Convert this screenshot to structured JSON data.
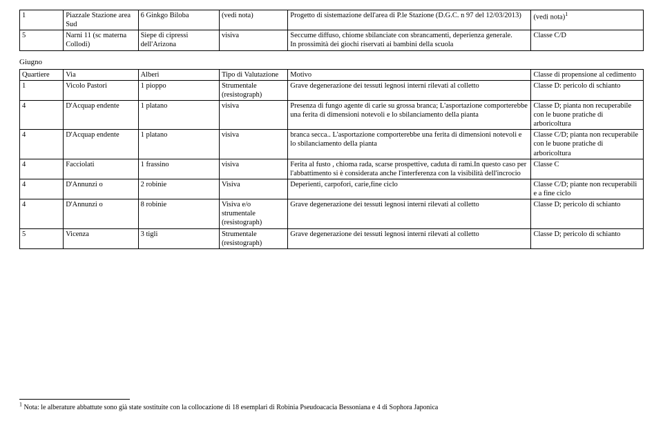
{
  "top_table": {
    "rows": [
      {
        "c0": "1",
        "c1": "Piazzale Stazione area Sud",
        "c2": "6 Ginkgo Biloba",
        "c3": "(vedi nota)",
        "c4": "Progetto di sistemazione dell'area di P.le Stazione (D.G.C. n 97 del 12/03/2013)",
        "c5": "(vedi nota)",
        "c5sup": "1"
      },
      {
        "c0": "5",
        "c1": "Narni 11 (sc materna Collodi)",
        "c2": "Siepe di cipressi dell'Arizona",
        "c3": "visiva",
        "c4": "Seccume diffuso, chiome sbilanciate con sbrancamenti, deperienza generale.\nIn prossimità dei giochi riservati ai bambini della scuola",
        "c5": "Classe C/D"
      }
    ]
  },
  "section_label": "Giugno",
  "main_table": {
    "header": {
      "c0": "Quartiere",
      "c1": "Via",
      "c2": "Alberi",
      "c3": "Tipo di Valutazione",
      "c4": "Motivo",
      "c5": "Classe di propensione al cedimento"
    },
    "rows": [
      {
        "c0": "1",
        "c1": "Vicolo Pastori",
        "c2": "1 pioppo",
        "c3": "Strumentale (resistograph)",
        "c4": "Grave degenerazione dei tessuti legnosi interni rilevati al colletto",
        "c5": "Classe D: pericolo di schianto"
      },
      {
        "c0": "4",
        "c1": "D'Acquap endente",
        "c2": "1 platano",
        "c3": "visiva",
        "c4": "Presenza di fungo agente di carie su grossa branca; L'asportazione comporterebbe una ferita di dimensioni notevoli e lo sbilanciamento della pianta",
        "c5": "Classe D; pianta non recuperabile con le buone pratiche di arboricoltura"
      },
      {
        "c0": "4",
        "c1": "D'Acquap endente",
        "c2": "1 platano",
        "c3": "visiva",
        "c4": "branca secca.. L'asportazione comporterebbe una ferita di dimensioni notevoli e lo sbilanciamento della pianta",
        "c5": "Classe C/D; pianta non recuperabile con le buone pratiche di arboricoltura"
      },
      {
        "c0": "4",
        "c1": "Facciolati",
        "c2": "1 frassino",
        "c3": "visiva",
        "c4": "Ferita al fusto , chioma rada, scarse prospettive, caduta di rami.In questo caso per l'abbattimento si è considerata anche l'interferenza con la visibilità dell'incrocio",
        "c5": "Classe C"
      },
      {
        "c0": "4",
        "c1": "D'Annunzi o",
        "c2": "2 robinie",
        "c3": "Visiva",
        "c4": "Deperienti, carpofori, carie,fine ciclo",
        "c5": "Classe C/D; piante non recuperabili e a fine ciclo"
      },
      {
        "c0": "4",
        "c1": "D'Annunzi o",
        "c2": "8 robinie",
        "c3": "Visiva e/o strumentale (resistograph)",
        "c4": "Grave degenerazione dei tessuti legnosi interni rilevati al colletto",
        "c5": "Classe D; pericolo di schianto"
      },
      {
        "c0": "5",
        "c1": "Vicenza",
        "c2": "3 tigli",
        "c3": "Strumentale (resistograph)",
        "c4": "Grave degenerazione dei tessuti legnosi interni rilevati al colletto",
        "c5": "Classe D; pericolo di schianto"
      }
    ]
  },
  "footnote": {
    "marker": "1",
    "text": " Nota: le alberature abbattute sono già state sostituite con la collocazione di 18 esemplari di Robinia Pseudoacacia Bessoniana e 4 di Sophora Japonica"
  }
}
